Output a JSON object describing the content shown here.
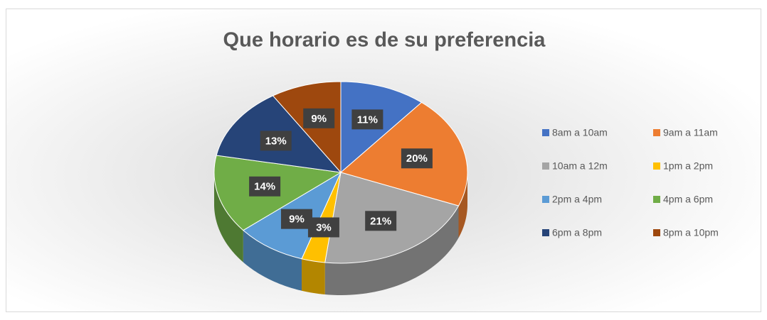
{
  "chart_data": {
    "type": "pie",
    "title": "Que horario es de su preferencia",
    "categories": [
      "8am a 10am",
      "9am a 11am",
      "10am a 12m",
      "1pm a 2pm",
      "2pm a 4pm",
      "4pm a 6pm",
      "6pm a 8pm",
      "8pm a 10pm"
    ],
    "values": [
      11,
      20,
      21,
      3,
      9,
      14,
      13,
      9
    ],
    "value_labels": [
      "11%",
      "20%",
      "21%",
      "3%",
      "9%",
      "14%",
      "13%",
      "9%"
    ],
    "colors": [
      "#4472c4",
      "#ed7d31",
      "#a5a5a5",
      "#ffc000",
      "#5b9bd5",
      "#70ad47",
      "#264478",
      "#9e480e"
    ],
    "legend": "right"
  }
}
